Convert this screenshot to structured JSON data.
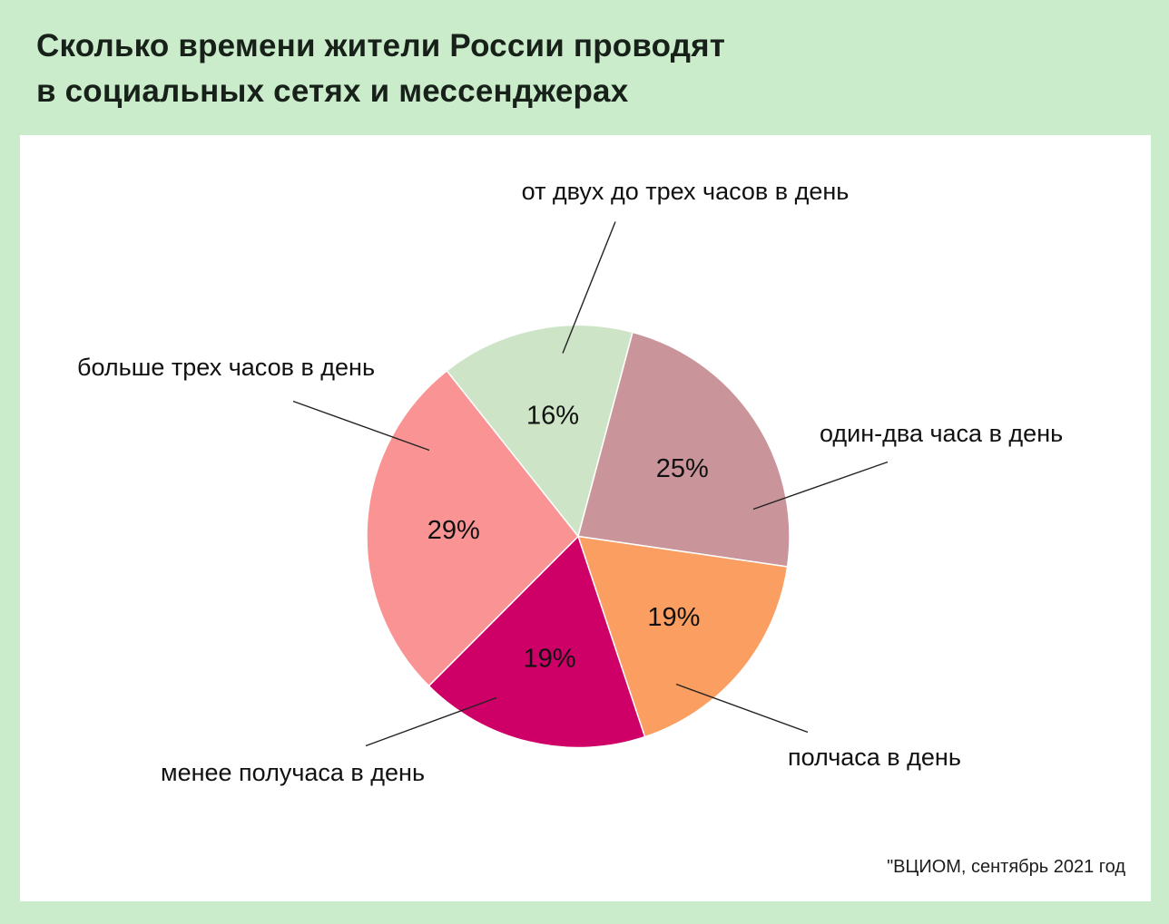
{
  "header": {
    "title_line1": "Сколько времени жители России проводят",
    "title_line2": "в социальных сетях и мессенджерах"
  },
  "source_caption": "\"ВЦИОМ, сентябрь 2021 год",
  "colors": {
    "page_background": "#cbeccb",
    "panel_background": "#ffffff",
    "title_text": "#172119",
    "label_text": "#111111",
    "leader_line": "#222222",
    "slice_edge": "#ffffff"
  },
  "chart_data": {
    "type": "pie",
    "title": "Сколько времени жители России проводят в социальных сетях и мессенджерах",
    "source": "\"ВЦИОМ, сентябрь 2021 год",
    "value_suffix": "%",
    "start_angle_deg": -38.4,
    "legend_position": "none",
    "labels_outside_with_leader_lines": true,
    "segments": [
      {
        "label": "от двух до трех часов в день",
        "value": 16,
        "color": "#cde4c7"
      },
      {
        "label": "один-два часа в день",
        "value": 25,
        "color": "#c9949a"
      },
      {
        "label": "полчаса в день",
        "value": 19,
        "color": "#fa9e61"
      },
      {
        "label": "менее получаса в день",
        "value": 19,
        "color": "#ce0067"
      },
      {
        "label": "больше трех часов в день",
        "value": 29,
        "color": "#fa9494"
      }
    ]
  }
}
